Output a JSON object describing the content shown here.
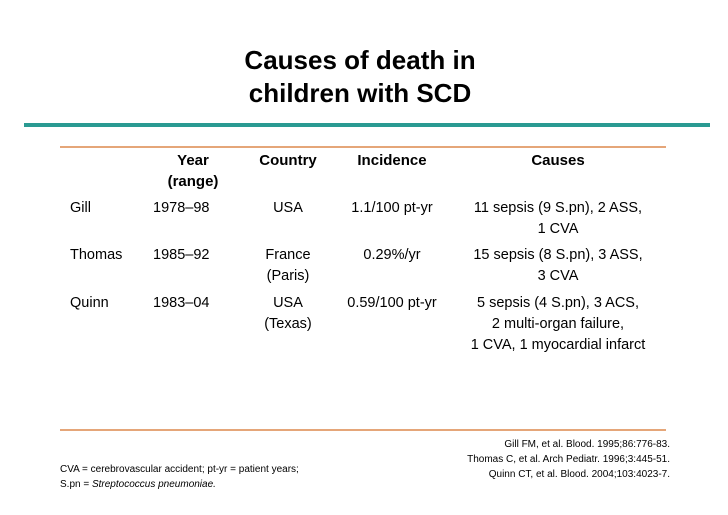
{
  "title": {
    "line1": "Causes of death in",
    "line2": "children with SCD"
  },
  "colors": {
    "title_bar": "#2a9a92",
    "table_rule": "#e5a679"
  },
  "table": {
    "headers": {
      "study": "",
      "year_line1": "Year",
      "year_line2": "(range)",
      "country": "Country",
      "incidence": "Incidence",
      "causes": "Causes"
    },
    "rows": [
      {
        "study": "Gill",
        "year": "1978–98",
        "country_line1": "USA",
        "country_line2": "",
        "incidence": "1.1/100 pt-yr",
        "causes_line1": "11 sepsis (9 S.pn), 2 ASS,",
        "causes_line2": "1 CVA",
        "causes_line3": ""
      },
      {
        "study": "Thomas",
        "year": "1985–92",
        "country_line1": "France",
        "country_line2": "(Paris)",
        "incidence": "0.29%/yr",
        "causes_line1": "15 sepsis (8 S.pn), 3 ASS,",
        "causes_line2": "3 CVA",
        "causes_line3": ""
      },
      {
        "study": "Quinn",
        "year": "1983–04",
        "country_line1": "USA",
        "country_line2": "(Texas)",
        "incidence": "0.59/100 pt-yr",
        "causes_line1": "5 sepsis (4 S.pn), 3 ACS,",
        "causes_line2": "2 multi-organ failure,",
        "causes_line3": "1 CVA, 1 myocardial infarct"
      }
    ]
  },
  "footnote": {
    "line1": "CVA = cerebrovascular accident; pt-yr = patient years;",
    "line2_prefix": "S.pn = ",
    "line2_italic": "Streptococcus pneumoniae."
  },
  "references": [
    "Gill FM, et al. Blood. 1995;86:776-83.",
    "Thomas C, et al. Arch Pediatr. 1996;3:445-51.",
    "Quinn CT, et al. Blood. 2004;103:4023-7."
  ]
}
